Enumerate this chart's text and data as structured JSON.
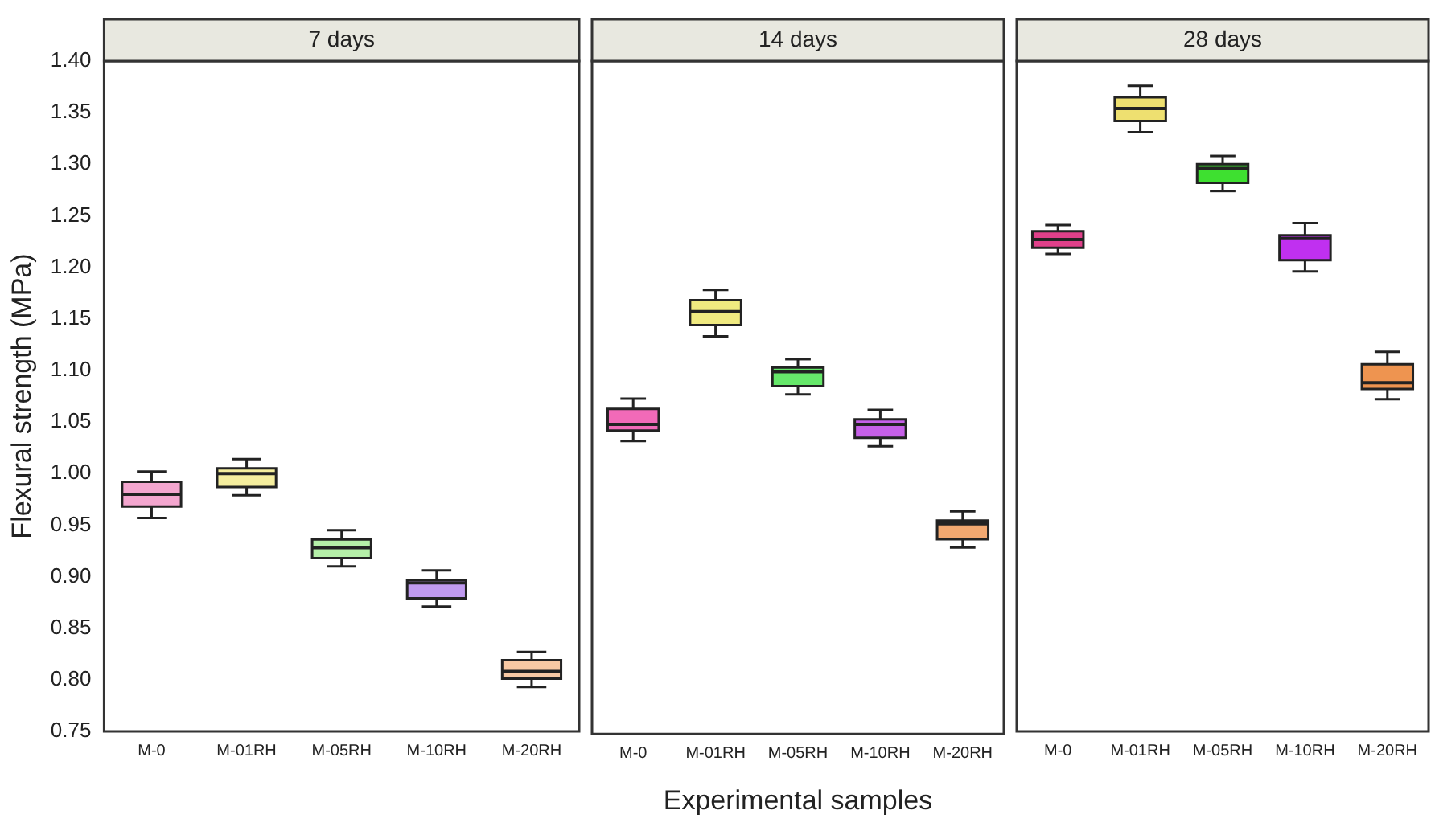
{
  "chart_data": [
    {
      "type": "box",
      "title": "7 days",
      "ylabel": "Flexural strength (MPa)",
      "categories": [
        "M-0",
        "M-01RH",
        "M-05RH",
        "M-10RH",
        "M-20RH"
      ],
      "ylim": [
        0.75,
        1.4
      ],
      "yticks": [
        0.75,
        {
          "value": 0.8,
          "label": "0.80"
        },
        0.85,
        {
          "value": 0.9,
          "label": "0.90"
        },
        0.95,
        {
          "value": 1.0,
          "label": "1.00"
        },
        1.05,
        {
          "value": 1.1,
          "label": "1.10"
        },
        1.15,
        {
          "value": 1.2,
          "label": "1.20"
        },
        1.25,
        {
          "value": 1.3,
          "label": "1.30"
        },
        1.35,
        {
          "value": 1.4,
          "label": "1.40"
        }
      ],
      "grid": false,
      "legend": false,
      "colors": [
        "#f4a6cf",
        "#f5ee9e",
        "#b5f0a8",
        "#c09af0",
        "#f8c9a4"
      ],
      "boxes": [
        {
          "low": 0.957,
          "q1": 0.968,
          "median": 0.98,
          "q3": 0.992,
          "high": 1.002
        },
        {
          "low": 0.979,
          "q1": 0.987,
          "median": 1.0,
          "q3": 1.005,
          "high": 1.014
        },
        {
          "low": 0.91,
          "q1": 0.918,
          "median": 0.928,
          "q3": 0.936,
          "high": 0.945
        },
        {
          "low": 0.871,
          "q1": 0.879,
          "median": 0.894,
          "q3": 0.897,
          "high": 0.906
        },
        {
          "low": 0.793,
          "q1": 0.801,
          "median": 0.808,
          "q3": 0.819,
          "high": 0.827
        }
      ]
    },
    {
      "type": "box",
      "title": "14 days",
      "xlabel": "Experimental samples",
      "categories": [
        "M-0",
        "M-01RH",
        "M-05RH",
        "M-10RH",
        "M-20RH"
      ],
      "ylim": [
        0.75,
        1.4
      ],
      "yticks": [
        0.75,
        0.8,
        0.85,
        0.9,
        0.95,
        1.0,
        1.05,
        1.1,
        1.15,
        1.2,
        1.25,
        1.3,
        1.35,
        1.4
      ],
      "tick_labels": "x",
      "grid": false,
      "legend": false,
      "colors": [
        "#f26ab8",
        "#f0ea80",
        "#66e86a",
        "#c660e8",
        "#f2a870"
      ],
      "boxes": [
        {
          "low": 1.033,
          "q1": 1.043,
          "median": 1.049,
          "q3": 1.064,
          "high": 1.074
        },
        {
          "low": 1.134,
          "q1": 1.145,
          "median": 1.158,
          "q3": 1.169,
          "high": 1.179
        },
        {
          "low": 1.078,
          "q1": 1.086,
          "median": 1.1,
          "q3": 1.104,
          "high": 1.112
        },
        {
          "low": 1.028,
          "q1": 1.036,
          "median": 1.049,
          "q3": 1.054,
          "high": 1.063
        },
        {
          "low": 0.93,
          "q1": 0.938,
          "median": 0.953,
          "q3": 0.956,
          "high": 0.965
        }
      ]
    },
    {
      "type": "box",
      "title": "28 days",
      "categories": [
        "M-0",
        "M-01RH",
        "M-05RH",
        "M-10RH",
        "M-20RH"
      ],
      "ylim": [
        0.75,
        1.4
      ],
      "yticks": [
        0.75,
        0.8,
        0.85,
        0.9,
        0.95,
        1.0,
        1.05,
        1.1,
        1.15,
        1.2,
        1.25,
        1.3,
        1.35,
        1.4
      ],
      "tick_labels": "x",
      "grid": false,
      "legend": false,
      "colors": [
        "#e0408a",
        "#eee070",
        "#3ee030",
        "#c030f0",
        "#ee9450"
      ],
      "boxes": [
        {
          "low": 1.213,
          "q1": 1.219,
          "median": 1.227,
          "q3": 1.235,
          "high": 1.241
        },
        {
          "low": 1.331,
          "q1": 1.342,
          "median": 1.354,
          "q3": 1.365,
          "high": 1.376
        },
        {
          "low": 1.274,
          "q1": 1.282,
          "median": 1.296,
          "q3": 1.3,
          "high": 1.308
        },
        {
          "low": 1.196,
          "q1": 1.207,
          "median": 1.228,
          "q3": 1.231,
          "high": 1.243
        },
        {
          "low": 1.072,
          "q1": 1.082,
          "median": 1.088,
          "q3": 1.106,
          "high": 1.118
        }
      ]
    }
  ]
}
